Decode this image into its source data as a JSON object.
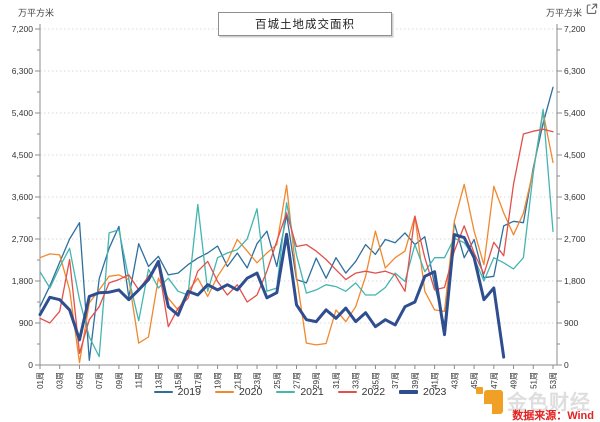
{
  "header": {
    "unit_left": "万平方米",
    "unit_right": "万平方米"
  },
  "watermark": {
    "brand": "金色财经",
    "source": "数据来源：Wind"
  },
  "chart_data": {
    "type": "line",
    "title": "百城土地成交面积",
    "ylabel": "万平方米",
    "xlabel": "",
    "ylim": [
      0,
      7200
    ],
    "ytick_interval": 900,
    "y_tick_labels": [
      "0",
      "900",
      "1,800",
      "2,700",
      "3,600",
      "4,500",
      "5,400",
      "6,300",
      "7,200"
    ],
    "x_tick_labels": [
      "01周",
      "03周",
      "05周",
      "07周",
      "09周",
      "11周",
      "13周",
      "15周",
      "17周",
      "19周",
      "21周",
      "23周",
      "25周",
      "27周",
      "29周",
      "31周",
      "33周",
      "35周",
      "37周",
      "39周",
      "41周",
      "43周",
      "45周",
      "47周",
      "49周",
      "51周",
      "53周"
    ],
    "weeks_total": 53,
    "grid": "horizontal-dotted",
    "legend_position": "bottom-center",
    "series": [
      {
        "name": "2019",
        "color": "#2e6f9e",
        "line_width": 1.3,
        "values": [
          1250,
          1700,
          2200,
          2700,
          3050,
          100,
          1850,
          2500,
          2970,
          1450,
          2600,
          2110,
          2330,
          1930,
          1970,
          2150,
          2290,
          2400,
          2550,
          2110,
          2400,
          2080,
          2600,
          2870,
          2110,
          3220,
          1830,
          1760,
          2290,
          1860,
          2300,
          1970,
          2220,
          2580,
          2370,
          2690,
          2620,
          2830,
          2580,
          2750,
          1720,
          850,
          3040,
          2300,
          2690,
          1870,
          1900,
          2980,
          3080,
          3050,
          4230,
          5180,
          5950
        ]
      },
      {
        "name": "2020",
        "color": "#f2882d",
        "line_width": 1.3,
        "values": [
          2300,
          2380,
          2360,
          1610,
          50,
          1330,
          1610,
          1900,
          1930,
          1830,
          470,
          600,
          1860,
          1430,
          1180,
          1580,
          1860,
          1470,
          1900,
          2220,
          2690,
          2440,
          2190,
          2400,
          2580,
          3850,
          1900,
          470,
          430,
          460,
          1180,
          930,
          1250,
          1900,
          2870,
          2080,
          2300,
          2440,
          3190,
          1580,
          1180,
          1150,
          3080,
          3870,
          2870,
          2150,
          3830,
          3260,
          2790,
          3250,
          4170,
          5420,
          4340
        ]
      },
      {
        "name": "2021",
        "color": "#45b5b0",
        "line_width": 1.3,
        "values": [
          2000,
          1650,
          2100,
          2500,
          1400,
          600,
          180,
          2830,
          2900,
          1850,
          950,
          2050,
          1650,
          1860,
          1580,
          1500,
          3440,
          1580,
          2300,
          2400,
          2470,
          2700,
          3350,
          1580,
          1650,
          3475,
          2360,
          1540,
          1610,
          1720,
          1680,
          1580,
          1760,
          1500,
          1500,
          1660,
          1970,
          1790,
          2580,
          2000,
          2300,
          2300,
          2720,
          2620,
          2300,
          1800,
          2300,
          2190,
          2060,
          2300,
          4120,
          5480,
          2860
        ]
      },
      {
        "name": "2022",
        "color": "#e2504c",
        "line_width": 1.3,
        "values": [
          1000,
          900,
          1150,
          2260,
          250,
          970,
          1250,
          1760,
          1830,
          1930,
          1610,
          1900,
          2150,
          820,
          1220,
          1430,
          2010,
          2220,
          1790,
          1500,
          1720,
          1350,
          1500,
          2010,
          2650,
          3260,
          2540,
          2580,
          2440,
          2260,
          2040,
          1830,
          1970,
          2010,
          1970,
          2010,
          1930,
          1580,
          3190,
          2300,
          1610,
          1660,
          2440,
          2980,
          2400,
          1950,
          2630,
          2340,
          3870,
          4950,
          5010,
          5050,
          5000
        ]
      },
      {
        "name": "2023",
        "color": "#2f4e8f",
        "line_width": 3,
        "values": [
          1080,
          1450,
          1400,
          1180,
          540,
          1470,
          1550,
          1560,
          1610,
          1400,
          1610,
          1830,
          2220,
          1250,
          1070,
          1580,
          1500,
          1720,
          1610,
          1720,
          1610,
          1860,
          1970,
          1440,
          1550,
          2800,
          1290,
          970,
          930,
          1180,
          1000,
          1220,
          930,
          1120,
          820,
          970,
          860,
          1250,
          1350,
          1900,
          2000,
          650,
          2795,
          2730,
          2300,
          1400,
          1650,
          170
        ]
      }
    ]
  }
}
